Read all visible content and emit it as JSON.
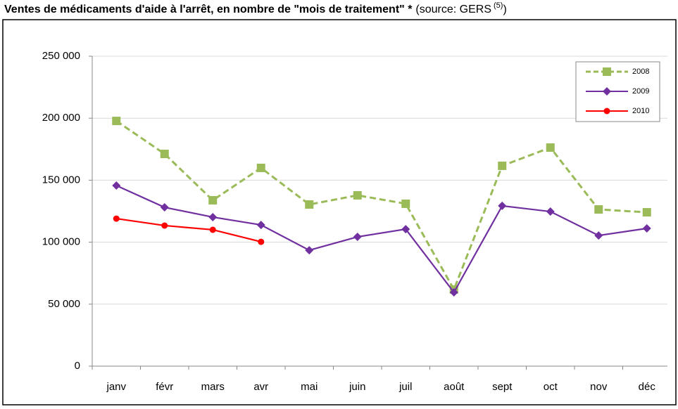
{
  "chart_data": {
    "type": "line",
    "title": "Ventes de médicaments d'aide à l'arrêt, en nombre de \"mois de traitement\" *",
    "source_note": [
      "(source: GERS",
      "(5)",
      ")"
    ],
    "categories": [
      "janv",
      "févr",
      "mars",
      "avr",
      "mai",
      "juin",
      "juil",
      "août",
      "sept",
      "oct",
      "nov",
      "déc"
    ],
    "series": [
      {
        "name": "2008",
        "color": "#9bbb59",
        "marker": "square",
        "dash": true,
        "values": [
          197800,
          171200,
          133800,
          159900,
          130400,
          137800,
          131000,
          61800,
          161600,
          176300,
          126400,
          124100
        ]
      },
      {
        "name": "2009",
        "color": "#7030a0",
        "marker": "diamond",
        "dash": false,
        "values": [
          145700,
          128100,
          120200,
          113900,
          93500,
          104300,
          110500,
          59500,
          129300,
          124700,
          105400,
          111100
        ]
      },
      {
        "name": "2010",
        "color": "#ff0000",
        "marker": "circle",
        "dash": false,
        "values": [
          119000,
          113400,
          110000,
          100300,
          null,
          null,
          null,
          null,
          null,
          null,
          null,
          null
        ]
      }
    ],
    "ylim": [
      0,
      250000
    ],
    "yticks": [
      0,
      {
        "value": 50000,
        "label": "50 000"
      },
      {
        "value": 100000,
        "label": "100 000"
      },
      {
        "value": 150000,
        "label": "150 000"
      },
      {
        "value": 200000,
        "label": "200 000"
      },
      {
        "value": 250000,
        "label": "250 000"
      }
    ],
    "grid": true,
    "legend": "top-right"
  }
}
